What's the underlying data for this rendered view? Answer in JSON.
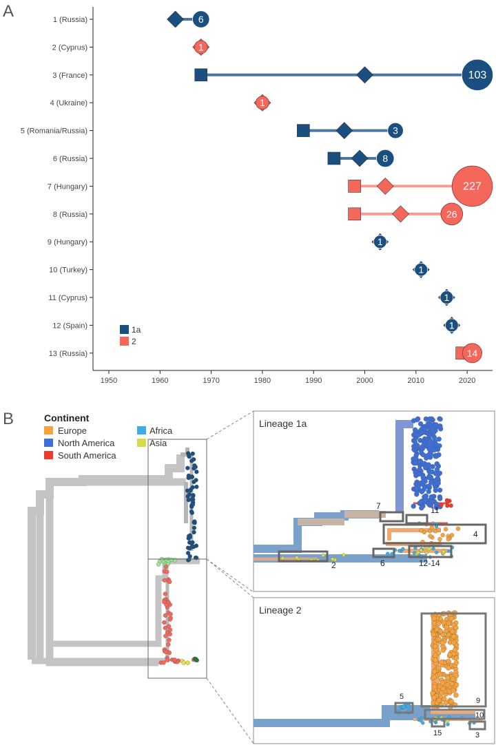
{
  "panel_a_label": "A",
  "panel_b_label": "B",
  "colors": {
    "lineage_1a": "#1a4f80",
    "lineage_2": "#f4675a",
    "line_1a": "#4a77a0",
    "line_2": "#f79b90"
  },
  "chart_data": {
    "type": "scatter",
    "title": "",
    "xlabel": "",
    "ylabel": "",
    "xlim": [
      1945,
      2025
    ],
    "xticks": [
      1950,
      1960,
      1970,
      1980,
      1990,
      2000,
      2010,
      2020
    ],
    "legend": {
      "placement": "bottom-left",
      "entries": [
        {
          "label": "1a",
          "lineage": "1a"
        },
        {
          "label": "2",
          "lineage": "2"
        }
      ]
    },
    "rows": [
      {
        "label": "1 (Russia)",
        "lineage": "1a",
        "square": null,
        "diamond": 1963,
        "circle": 1968,
        "n": "6"
      },
      {
        "label": "2 (Cyprus)",
        "lineage": "2",
        "square": null,
        "diamond": 1968,
        "circle": 1968,
        "n": "1"
      },
      {
        "label": "3 (France)",
        "lineage": "1a",
        "square": 1968,
        "diamond": 2000,
        "circle": 2022,
        "n": "103"
      },
      {
        "label": "4 (Ukraine)",
        "lineage": "2",
        "square": null,
        "diamond": 1980,
        "circle": 1980,
        "n": "1"
      },
      {
        "label": "5 (Romania/Russia)",
        "lineage": "1a",
        "square": 1988,
        "diamond": 1996,
        "circle": 2006,
        "n": "3"
      },
      {
        "label": "6 (Russia)",
        "lineage": "1a",
        "square": 1994,
        "diamond": 1999,
        "circle": 2004,
        "n": "8"
      },
      {
        "label": "7 (Hungary)",
        "lineage": "2",
        "square": 1998,
        "diamond": 2004,
        "circle": 2021,
        "n": "227"
      },
      {
        "label": "8 (Russia)",
        "lineage": "2",
        "square": 1998,
        "diamond": 2007,
        "circle": 2017,
        "n": "26"
      },
      {
        "label": "9 (Hungary)",
        "lineage": "1a",
        "square": null,
        "diamond": 2003,
        "circle": 2003,
        "n": "1"
      },
      {
        "label": "10 (Turkey)",
        "lineage": "1a",
        "square": null,
        "diamond": 2011,
        "circle": 2011,
        "n": "1"
      },
      {
        "label": "11 (Cyprus)",
        "lineage": "1a",
        "square": null,
        "diamond": 2016,
        "circle": 2016,
        "n": "1"
      },
      {
        "label": "12 (Spain)",
        "lineage": "1a",
        "square": null,
        "diamond": 2017,
        "circle": 2017,
        "n": "1"
      },
      {
        "label": "13 (Russia)",
        "lineage": "2",
        "square": 2019,
        "diamond": null,
        "circle": 2021,
        "n": "14"
      }
    ]
  },
  "panel_b": {
    "legend": {
      "title": "Continent",
      "items": [
        {
          "label": "Europe",
          "color": "#f7a23a"
        },
        {
          "label": "North America",
          "color": "#3d6fd9"
        },
        {
          "label": "South America",
          "color": "#ee3b2e"
        },
        {
          "label": "Africa",
          "color": "#3aaee8"
        },
        {
          "label": "Asia",
          "color": "#d4dc4a"
        }
      ]
    },
    "inset_1a": {
      "title": "Lineage 1a",
      "box_labels": [
        "7",
        "11",
        "4",
        "2",
        "6",
        "12-14"
      ]
    },
    "inset_2": {
      "title": "Lineage 2",
      "box_labels": [
        "5",
        "9",
        "10",
        "15",
        "3"
      ]
    }
  }
}
